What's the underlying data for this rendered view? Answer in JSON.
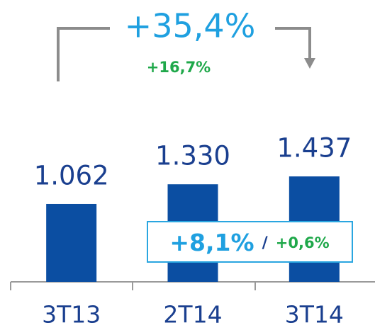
{
  "chart_data": {
    "type": "bar",
    "categories": [
      "3T13",
      "2T14",
      "3T14"
    ],
    "values": [
      1062,
      1330,
      1437
    ],
    "value_labels": [
      "1.062",
      "1.330",
      "1.437"
    ],
    "color": "#0b4ea2",
    "annotations": {
      "total_growth": "+35,4%",
      "sub_growth": "+16,7%",
      "box_main": "+8,1%",
      "box_separator": "/",
      "box_secondary": "+0,6%"
    }
  }
}
